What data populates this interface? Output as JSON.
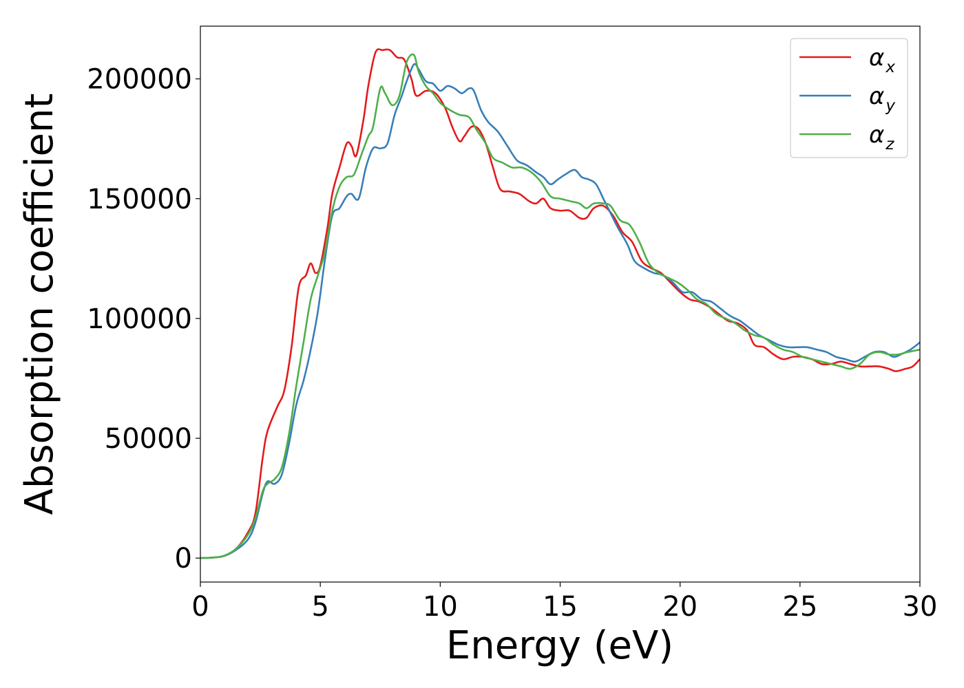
{
  "chart_data": {
    "type": "line",
    "xlabel": "Energy (eV)",
    "ylabel": "Absorption coefficient",
    "xlim": [
      0,
      30
    ],
    "ylim": [
      -10000,
      222000
    ],
    "x_ticks": [
      0,
      5,
      10,
      15,
      20,
      25,
      30
    ],
    "y_ticks": [
      0,
      50000,
      100000,
      150000,
      200000
    ],
    "x_tick_labels": [
      "0",
      "5",
      "10",
      "15",
      "20",
      "25",
      "30"
    ],
    "y_tick_labels": [
      "0",
      "50000",
      "100000",
      "150000",
      "200000"
    ],
    "grid": false,
    "legend_position": "top-right",
    "series": [
      {
        "name": "αx",
        "symbol": "α",
        "subscript": "x",
        "color": "#e41a1c",
        "points": [
          [
            0,
            0
          ],
          [
            0.5,
            200
          ],
          [
            1,
            1000
          ],
          [
            1.5,
            4000
          ],
          [
            2,
            11000
          ],
          [
            2.3,
            19000
          ],
          [
            2.6,
            42000
          ],
          [
            2.8,
            53000
          ],
          [
            3.2,
            63000
          ],
          [
            3.5,
            70000
          ],
          [
            3.8,
            88000
          ],
          [
            4.1,
            113000
          ],
          [
            4.4,
            118000
          ],
          [
            4.6,
            123000
          ],
          [
            4.8,
            119000
          ],
          [
            5,
            122000
          ],
          [
            5.3,
            138000
          ],
          [
            5.5,
            152000
          ],
          [
            5.8,
            163000
          ],
          [
            6.1,
            173000
          ],
          [
            6.3,
            172000
          ],
          [
            6.5,
            168000
          ],
          [
            6.8,
            183000
          ],
          [
            7.0,
            197000
          ],
          [
            7.3,
            211000
          ],
          [
            7.6,
            212000
          ],
          [
            7.9,
            212000
          ],
          [
            8.2,
            209000
          ],
          [
            8.5,
            208000
          ],
          [
            8.8,
            200000
          ],
          [
            9.0,
            193000
          ],
          [
            9.4,
            195000
          ],
          [
            9.8,
            194000
          ],
          [
            10.2,
            188000
          ],
          [
            10.5,
            180000
          ],
          [
            10.8,
            174000
          ],
          [
            11.0,
            176000
          ],
          [
            11.3,
            180000
          ],
          [
            11.6,
            179000
          ],
          [
            11.9,
            173000
          ],
          [
            12.2,
            163000
          ],
          [
            12.5,
            154000
          ],
          [
            12.9,
            153000
          ],
          [
            13.3,
            152000
          ],
          [
            13.7,
            149000
          ],
          [
            14.0,
            148000
          ],
          [
            14.3,
            150000
          ],
          [
            14.6,
            146000
          ],
          [
            15.0,
            145000
          ],
          [
            15.4,
            145000
          ],
          [
            15.8,
            142000
          ],
          [
            16.1,
            142000
          ],
          [
            16.4,
            146000
          ],
          [
            16.8,
            147000
          ],
          [
            17.2,
            143000
          ],
          [
            17.6,
            136000
          ],
          [
            18.0,
            132000
          ],
          [
            18.4,
            124000
          ],
          [
            18.8,
            121000
          ],
          [
            19.2,
            119000
          ],
          [
            19.6,
            115000
          ],
          [
            20.0,
            111000
          ],
          [
            20.4,
            108000
          ],
          [
            20.8,
            107000
          ],
          [
            21.2,
            105000
          ],
          [
            21.6,
            102000
          ],
          [
            22.0,
            99000
          ],
          [
            22.4,
            98000
          ],
          [
            22.8,
            95000
          ],
          [
            23.1,
            89000
          ],
          [
            23.5,
            88000
          ],
          [
            23.9,
            85000
          ],
          [
            24.3,
            83000
          ],
          [
            24.7,
            84000
          ],
          [
            25.1,
            84000
          ],
          [
            25.5,
            83000
          ],
          [
            25.9,
            81000
          ],
          [
            26.3,
            81000
          ],
          [
            26.7,
            82000
          ],
          [
            27.1,
            81000
          ],
          [
            27.5,
            80000
          ],
          [
            27.9,
            80000
          ],
          [
            28.3,
            80000
          ],
          [
            28.7,
            79000
          ],
          [
            29.0,
            78000
          ],
          [
            29.4,
            79000
          ],
          [
            29.7,
            80000
          ],
          [
            30,
            83000
          ]
        ]
      },
      {
        "name": "αy",
        "symbol": "α",
        "subscript": "y",
        "color": "#377eb8",
        "points": [
          [
            0,
            0
          ],
          [
            0.5,
            200
          ],
          [
            1,
            900
          ],
          [
            1.5,
            3500
          ],
          [
            2,
            8000
          ],
          [
            2.3,
            15000
          ],
          [
            2.6,
            27000
          ],
          [
            2.8,
            32000
          ],
          [
            3.1,
            31000
          ],
          [
            3.4,
            35000
          ],
          [
            3.7,
            48000
          ],
          [
            4.0,
            64000
          ],
          [
            4.3,
            74000
          ],
          [
            4.6,
            87000
          ],
          [
            4.9,
            103000
          ],
          [
            5.2,
            125000
          ],
          [
            5.5,
            143000
          ],
          [
            5.8,
            146000
          ],
          [
            6.1,
            151000
          ],
          [
            6.3,
            152000
          ],
          [
            6.6,
            150000
          ],
          [
            6.9,
            163000
          ],
          [
            7.2,
            171000
          ],
          [
            7.5,
            171000
          ],
          [
            7.8,
            173000
          ],
          [
            8.1,
            185000
          ],
          [
            8.4,
            193000
          ],
          [
            8.6,
            199000
          ],
          [
            8.9,
            206000
          ],
          [
            9.1,
            204000
          ],
          [
            9.4,
            199000
          ],
          [
            9.7,
            198000
          ],
          [
            10.0,
            195000
          ],
          [
            10.3,
            197000
          ],
          [
            10.6,
            196000
          ],
          [
            10.9,
            194000
          ],
          [
            11.2,
            196000
          ],
          [
            11.4,
            195000
          ],
          [
            11.7,
            187000
          ],
          [
            12.0,
            182000
          ],
          [
            12.4,
            178000
          ],
          [
            12.8,
            172000
          ],
          [
            13.2,
            166000
          ],
          [
            13.6,
            164000
          ],
          [
            14.0,
            161000
          ],
          [
            14.3,
            159000
          ],
          [
            14.6,
            156000
          ],
          [
            14.9,
            158000
          ],
          [
            15.2,
            160000
          ],
          [
            15.6,
            162000
          ],
          [
            15.9,
            159000
          ],
          [
            16.2,
            158000
          ],
          [
            16.5,
            156000
          ],
          [
            16.8,
            150000
          ],
          [
            17.1,
            144000
          ],
          [
            17.4,
            138000
          ],
          [
            17.8,
            131000
          ],
          [
            18.1,
            124000
          ],
          [
            18.5,
            121000
          ],
          [
            18.9,
            119000
          ],
          [
            19.3,
            118000
          ],
          [
            19.7,
            115000
          ],
          [
            20.1,
            111000
          ],
          [
            20.5,
            111000
          ],
          [
            20.9,
            108000
          ],
          [
            21.3,
            107000
          ],
          [
            21.7,
            104000
          ],
          [
            22.1,
            101000
          ],
          [
            22.5,
            99000
          ],
          [
            22.9,
            96000
          ],
          [
            23.3,
            93000
          ],
          [
            23.7,
            91000
          ],
          [
            24.1,
            89000
          ],
          [
            24.5,
            88000
          ],
          [
            24.9,
            88000
          ],
          [
            25.3,
            88000
          ],
          [
            25.7,
            87000
          ],
          [
            26.1,
            86000
          ],
          [
            26.5,
            84000
          ],
          [
            26.9,
            83000
          ],
          [
            27.3,
            82000
          ],
          [
            27.7,
            84000
          ],
          [
            28.1,
            86000
          ],
          [
            28.5,
            86000
          ],
          [
            28.9,
            84000
          ],
          [
            29.2,
            85000
          ],
          [
            29.6,
            87000
          ],
          [
            30,
            90000
          ]
        ]
      },
      {
        "name": "αz",
        "symbol": "α",
        "subscript": "z",
        "color": "#4daf4a",
        "points": [
          [
            0,
            0
          ],
          [
            0.5,
            200
          ],
          [
            1,
            1000
          ],
          [
            1.5,
            4000
          ],
          [
            2,
            10000
          ],
          [
            2.3,
            17000
          ],
          [
            2.6,
            28000
          ],
          [
            2.8,
            31000
          ],
          [
            3.1,
            33000
          ],
          [
            3.4,
            38000
          ],
          [
            3.7,
            52000
          ],
          [
            4.0,
            72000
          ],
          [
            4.3,
            90000
          ],
          [
            4.6,
            108000
          ],
          [
            4.9,
            118000
          ],
          [
            5.2,
            128000
          ],
          [
            5.5,
            145000
          ],
          [
            5.8,
            155000
          ],
          [
            6.1,
            159000
          ],
          [
            6.4,
            160000
          ],
          [
            6.7,
            168000
          ],
          [
            7.0,
            176000
          ],
          [
            7.2,
            180000
          ],
          [
            7.5,
            196000
          ],
          [
            7.7,
            194000
          ],
          [
            8.0,
            189000
          ],
          [
            8.3,
            193000
          ],
          [
            8.6,
            207000
          ],
          [
            8.9,
            210000
          ],
          [
            9.1,
            203000
          ],
          [
            9.4,
            197000
          ],
          [
            9.7,
            194000
          ],
          [
            10.0,
            190000
          ],
          [
            10.4,
            187000
          ],
          [
            10.8,
            185000
          ],
          [
            11.2,
            184000
          ],
          [
            11.5,
            179000
          ],
          [
            11.9,
            173000
          ],
          [
            12.2,
            167000
          ],
          [
            12.6,
            165000
          ],
          [
            13.0,
            163000
          ],
          [
            13.4,
            163000
          ],
          [
            13.8,
            161000
          ],
          [
            14.2,
            157000
          ],
          [
            14.6,
            151000
          ],
          [
            15.0,
            150000
          ],
          [
            15.4,
            149000
          ],
          [
            15.8,
            148000
          ],
          [
            16.1,
            146000
          ],
          [
            16.4,
            148000
          ],
          [
            16.8,
            148000
          ],
          [
            17.1,
            147000
          ],
          [
            17.5,
            141000
          ],
          [
            17.9,
            139000
          ],
          [
            18.3,
            132000
          ],
          [
            18.7,
            123000
          ],
          [
            19.1,
            119000
          ],
          [
            19.5,
            117000
          ],
          [
            19.9,
            115000
          ],
          [
            20.3,
            112000
          ],
          [
            20.7,
            108000
          ],
          [
            21.1,
            106000
          ],
          [
            21.5,
            102000
          ],
          [
            21.9,
            100000
          ],
          [
            22.3,
            98000
          ],
          [
            22.7,
            95000
          ],
          [
            23.1,
            93000
          ],
          [
            23.5,
            92000
          ],
          [
            23.9,
            89000
          ],
          [
            24.3,
            87000
          ],
          [
            24.7,
            86000
          ],
          [
            25.1,
            84000
          ],
          [
            25.5,
            83000
          ],
          [
            25.9,
            82000
          ],
          [
            26.3,
            81000
          ],
          [
            26.7,
            80000
          ],
          [
            27.1,
            79000
          ],
          [
            27.5,
            81000
          ],
          [
            27.9,
            85000
          ],
          [
            28.3,
            86000
          ],
          [
            28.7,
            85000
          ],
          [
            29.1,
            85000
          ],
          [
            29.5,
            86000
          ],
          [
            30,
            87000
          ]
        ]
      }
    ]
  }
}
